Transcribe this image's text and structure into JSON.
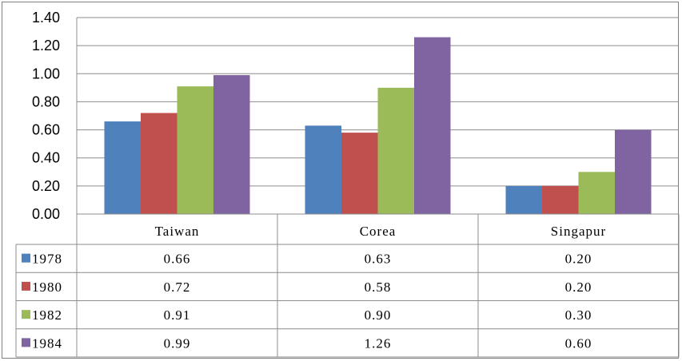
{
  "chart_data": {
    "type": "bar",
    "categories": [
      "Taiwan",
      "Corea",
      "Singapur"
    ],
    "series": [
      {
        "name": "1978",
        "color": "#4f81bd",
        "values": [
          0.66,
          0.63,
          0.2
        ],
        "labels": [
          "0.66",
          "0.63",
          "0.20"
        ]
      },
      {
        "name": "1980",
        "color": "#c0504d",
        "values": [
          0.72,
          0.58,
          0.2
        ],
        "labels": [
          "0.72",
          "0.58",
          "0.20"
        ]
      },
      {
        "name": "1982",
        "color": "#9bbb59",
        "values": [
          0.91,
          0.9,
          0.3
        ],
        "labels": [
          "0.91",
          "0.90",
          "0.30"
        ]
      },
      {
        "name": "1984",
        "color": "#8064a2",
        "values": [
          0.99,
          1.26,
          0.6
        ],
        "labels": [
          "0.99",
          "1.26",
          "0.60"
        ]
      }
    ],
    "yticks": [
      "0.00",
      "0.20",
      "0.40",
      "0.60",
      "0.80",
      "1.00",
      "1.20",
      "1.40"
    ],
    "ylim": [
      0,
      1.4
    ],
    "grid": true,
    "legend": "data-table"
  }
}
